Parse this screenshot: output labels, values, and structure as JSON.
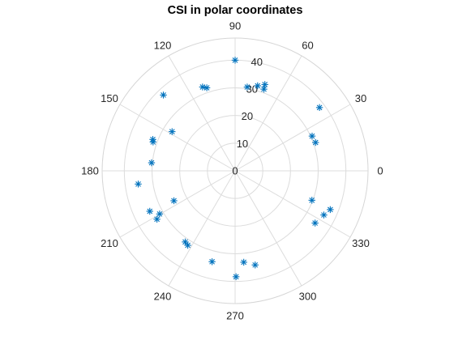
{
  "chart_data": {
    "type": "scatter",
    "coordinate_system": "polar",
    "angle_units": "degrees",
    "title": "CSI in polar coordinates",
    "theta_ticks": [
      0,
      30,
      60,
      90,
      120,
      150,
      180,
      210,
      240,
      270,
      300,
      330
    ],
    "theta_tick_labels": [
      "0",
      "30",
      "60",
      "90",
      "120",
      "150",
      "180",
      "210",
      "240",
      "270",
      "300",
      "330"
    ],
    "r_ticks": [
      0,
      10,
      20,
      30,
      40
    ],
    "r_tick_labels": [
      "0",
      "10",
      "20",
      "30",
      "40"
    ],
    "rlim": [
      0,
      48
    ],
    "grid": true,
    "marker": "*",
    "marker_color": "#0072BD",
    "series": [
      {
        "points": [
          {
            "theta": 90.0,
            "r": 40.0
          },
          {
            "theta": 81.8,
            "r": 30.6
          },
          {
            "theta": 75.2,
            "r": 31.8
          },
          {
            "theta": 70.6,
            "r": 31.3
          },
          {
            "theta": 71.0,
            "r": 33.0
          },
          {
            "theta": 111.2,
            "r": 32.5
          },
          {
            "theta": 108.8,
            "r": 31.7
          },
          {
            "theta": 133.4,
            "r": 37.7
          },
          {
            "theta": 148.1,
            "r": 26.8
          },
          {
            "theta": 159.1,
            "r": 31.8
          },
          {
            "theta": 160.6,
            "r": 31.4
          },
          {
            "theta": 174.5,
            "r": 30.3
          },
          {
            "theta": 187.8,
            "r": 35.3
          },
          {
            "theta": 206.1,
            "r": 24.6
          },
          {
            "theta": 209.8,
            "r": 31.4
          },
          {
            "theta": 205.4,
            "r": 34.1
          },
          {
            "theta": 211.8,
            "r": 33.2
          },
          {
            "theta": 235.0,
            "r": 31.4
          },
          {
            "theta": 237.6,
            "r": 31.9
          },
          {
            "theta": 255.8,
            "r": 33.9
          },
          {
            "theta": 270.5,
            "r": 38.3
          },
          {
            "theta": 275.4,
            "r": 33.2
          },
          {
            "theta": 282.0,
            "r": 34.8
          },
          {
            "theta": 36.9,
            "r": 38.1
          },
          {
            "theta": 24.3,
            "r": 30.5
          },
          {
            "theta": 19.4,
            "r": 30.8
          },
          {
            "theta": 339.0,
            "r": 29.7
          },
          {
            "theta": 333.5,
            "r": 35.8
          },
          {
            "theta": 337.8,
            "r": 37.1
          },
          {
            "theta": 326.8,
            "r": 34.5
          }
        ]
      }
    ]
  },
  "colors": {
    "marker": "#0072BD",
    "grid": "#dcdcdc",
    "text": "#262626"
  }
}
